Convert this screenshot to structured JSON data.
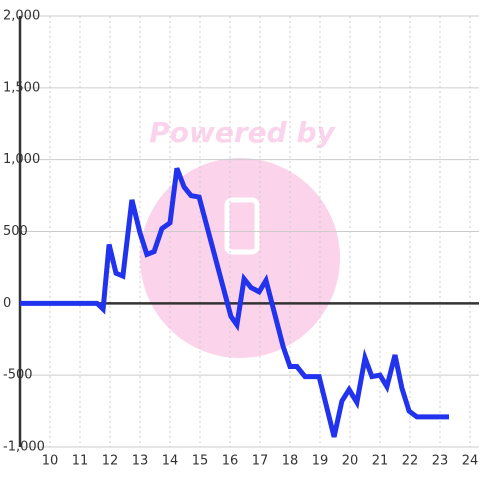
{
  "chart_data": {
    "type": "line",
    "watermark": "Powered by",
    "x": [
      9,
      11.57,
      11.77,
      11.97,
      12.2,
      12.43,
      12.73,
      13,
      13.23,
      13.47,
      13.73,
      14,
      14.23,
      14.47,
      14.7,
      14.97,
      16.03,
      16.23,
      16.47,
      16.7,
      16.97,
      17.2,
      17.77,
      18,
      18.23,
      18.5,
      18.97,
      19.47,
      19.73,
      19.97,
      20.23,
      20.5,
      20.73,
      21,
      21.23,
      21.5,
      21.73,
      21.97,
      22.23,
      23.3
    ],
    "series": [
      {
        "color": "#2233ee",
        "values": [
          0,
          0,
          -40,
          410,
          210,
          190,
          720,
          490,
          340,
          360,
          520,
          560,
          940,
          810,
          750,
          740,
          -90,
          -150,
          170,
          110,
          80,
          160,
          -300,
          -440,
          -440,
          -510,
          -510,
          -930,
          -680,
          -600,
          -690,
          -380,
          -510,
          -500,
          -580,
          -360,
          -590,
          -750,
          -790,
          -790
        ]
      }
    ],
    "xlim": [
      9,
      24.3
    ],
    "xticks": [
      10,
      11,
      12,
      13,
      14,
      15,
      16,
      17,
      18,
      19,
      20,
      21,
      22,
      23,
      24
    ],
    "ylim": [
      -1000,
      2000
    ],
    "yticks": [
      {
        "value": -1000,
        "label": "-1,000"
      },
      -500,
      0,
      500,
      {
        "value": 1000,
        "label": "1,000"
      },
      {
        "value": 1500,
        "label": "1,500"
      },
      {
        "value": 2000,
        "label": "2,000"
      }
    ],
    "grid": true
  }
}
